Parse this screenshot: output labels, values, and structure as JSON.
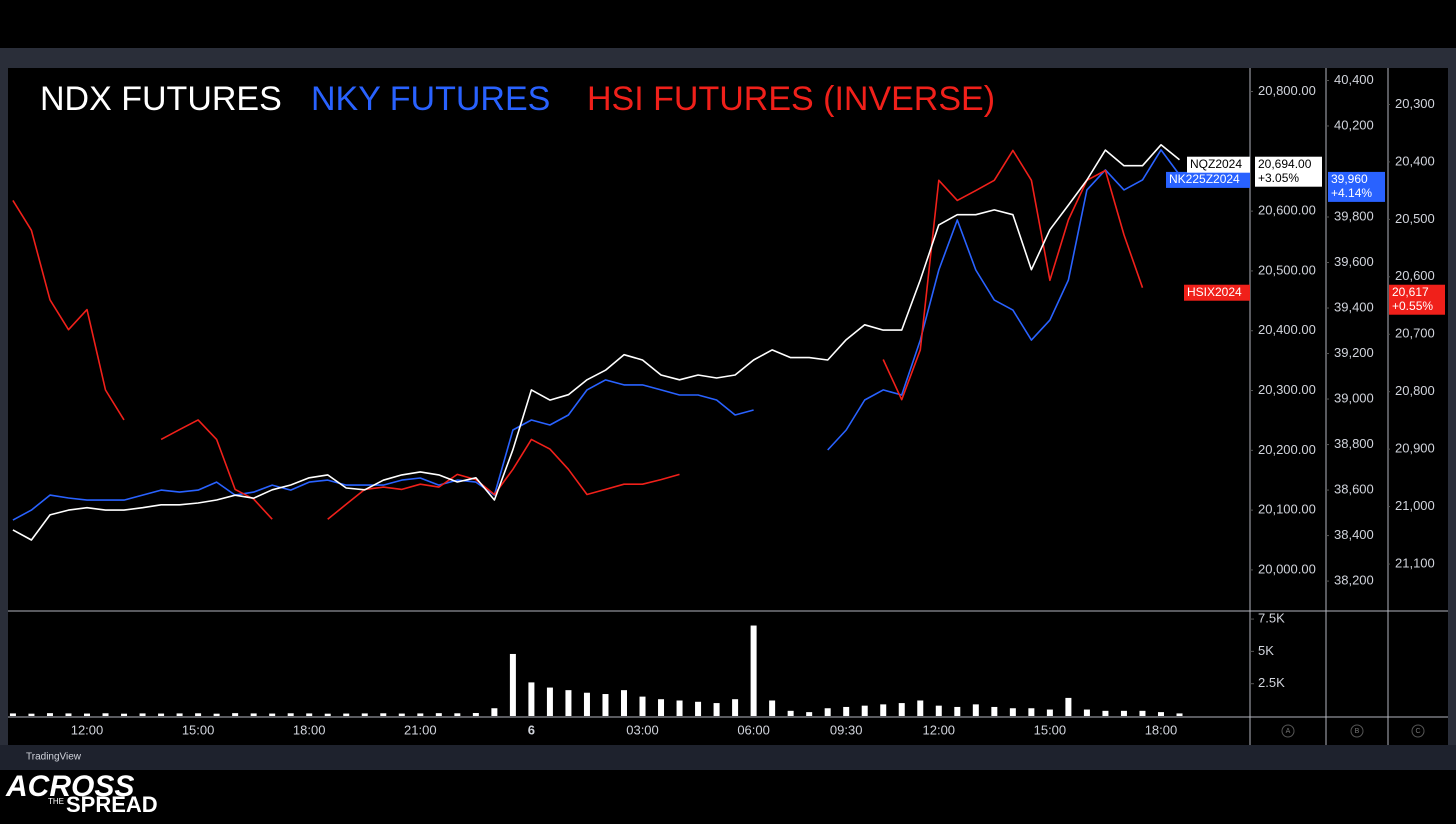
{
  "chart_data": {
    "type": "line",
    "categories": [
      null,
      null,
      null,
      null,
      "12:00",
      null,
      null,
      null,
      null,
      null,
      "15:00",
      null,
      null,
      null,
      null,
      null,
      "18:00",
      null,
      null,
      null,
      null,
      null,
      "21:00",
      null,
      null,
      null,
      null,
      null,
      "6",
      null,
      null,
      null,
      null,
      null,
      "03:00",
      null,
      null,
      null,
      null,
      null,
      "06:00",
      null,
      null,
      null,
      null,
      "09:30",
      null,
      null,
      null,
      null,
      "12:00",
      null,
      null,
      null,
      null,
      null,
      "15:00",
      null,
      null,
      null,
      null,
      null,
      "18:00",
      null
    ],
    "series": [
      {
        "name": "NKY FUTURES",
        "color": "#2962ff",
        "axis": "y2",
        "price_label": "NK225Z2024",
        "last_label": "39,960",
        "change_label": "+4.14%",
        "values": [
          38468,
          38512,
          38578,
          38565,
          38556,
          38556,
          38556,
          38578,
          38600,
          38591,
          38600,
          38635,
          38578,
          38591,
          38622,
          38600,
          38635,
          38644,
          38622,
          38622,
          38622,
          38644,
          38653,
          38622,
          38644,
          38635,
          38578,
          38864,
          38908,
          38886,
          38930,
          39040,
          39084,
          39062,
          39062,
          39040,
          39018,
          39018,
          38996,
          38930,
          38952,
          null,
          null,
          null,
          38776,
          38864,
          38996,
          39040,
          39018,
          39259,
          39567,
          39787,
          39567,
          39435,
          39391,
          39259,
          39347,
          39523,
          39919,
          40007,
          39919,
          39963,
          40095,
          39985
        ]
      },
      {
        "name": "HSI FUTURES (INVERSE)",
        "color": "#f0201a",
        "axis": "y3",
        "price_label": "HSIX2024",
        "last_label": "20,617",
        "change_label": "+0.55%",
        "values": [
          20467,
          20519,
          20640,
          20692,
          20657,
          20797,
          20849,
          null,
          20883,
          20866,
          20849,
          20883,
          20970,
          20987,
          21022,
          null,
          null,
          21022,
          20996,
          20970,
          20966,
          20970,
          20961,
          20966,
          20944,
          20953,
          20979,
          20935,
          20883,
          20900,
          20935,
          20979,
          20970,
          20961,
          20961,
          20953,
          20944,
          null,
          null,
          null,
          null,
          null,
          null,
          null,
          null,
          null,
          null,
          20744,
          20814,
          20727,
          20432,
          20467,
          20450,
          20432,
          20380,
          20432,
          20606,
          20501,
          20432,
          20415,
          20527,
          20619,
          null,
          null
        ]
      },
      {
        "name": "NDX FUTURES",
        "color": "#ffffff",
        "axis": "y",
        "price_label": "NQZ2024",
        "last_label": "20,694.00",
        "change_label": "+3.05%",
        "values": [
          20067,
          20050,
          20092,
          20100,
          20104,
          20100,
          20100,
          20104,
          20109,
          20109,
          20112,
          20117,
          20125,
          20120,
          20134,
          20142,
          20154,
          20159,
          20137,
          20134,
          20150,
          20159,
          20164,
          20159,
          20147,
          20154,
          20117,
          20201,
          20301,
          20284,
          20293,
          20318,
          20334,
          20360,
          20351,
          20326,
          20318,
          20326,
          20321,
          20326,
          20351,
          20368,
          20355,
          20355,
          20351,
          20385,
          20410,
          20401,
          20401,
          20485,
          20577,
          20594,
          20594,
          20602,
          20594,
          20502,
          20569,
          20610,
          20652,
          20702,
          20676,
          20676,
          20711,
          20686
        ]
      }
    ],
    "ylim": [
      19933,
      20836
    ],
    "yticks": [
      {
        "value": 20000,
        "label": "20,000.00"
      },
      {
        "value": 20100,
        "label": "20,100.00"
      },
      {
        "value": 20200,
        "label": "20,200.00"
      },
      {
        "value": 20300,
        "label": "20,300.00"
      },
      {
        "value": 20400,
        "label": "20,400.00"
      },
      {
        "value": 20500,
        "label": "20,500.00"
      },
      {
        "value": 20600,
        "label": "20,600.00"
      },
      {
        "value": 20800,
        "label": "20,800.00"
      }
    ],
    "y2lim": [
      38073,
      40446
    ],
    "y2ticks": [
      {
        "value": 38200,
        "label": "38,200"
      },
      {
        "value": 38400,
        "label": "38,400"
      },
      {
        "value": 38600,
        "label": "38,600"
      },
      {
        "value": 38800,
        "label": "38,800"
      },
      {
        "value": 39000,
        "label": "39,000"
      },
      {
        "value": 39200,
        "label": "39,200"
      },
      {
        "value": 39400,
        "label": "39,400"
      },
      {
        "value": 39600,
        "label": "39,600"
      },
      {
        "value": 39800,
        "label": "39,800"
      },
      {
        "value": 40200,
        "label": "40,200"
      },
      {
        "value": 40400,
        "label": "40,400"
      }
    ],
    "y3lim": [
      21180,
      20240
    ],
    "y3ticks": [
      {
        "value": 20300,
        "label": "20,300"
      },
      {
        "value": 20400,
        "label": "20,400"
      },
      {
        "value": 20500,
        "label": "20,500"
      },
      {
        "value": 20600,
        "label": "20,600"
      },
      {
        "value": 20700,
        "label": "20,700"
      },
      {
        "value": 20800,
        "label": "20,800"
      },
      {
        "value": 20900,
        "label": "20,900"
      },
      {
        "value": 21000,
        "label": "21,000"
      },
      {
        "value": 21100,
        "label": "21,100"
      }
    ],
    "volume": {
      "color": "#ffffff",
      "ylim": [
        0,
        8047
      ],
      "yticks": [
        {
          "value": 2500,
          "label": "2.5K"
        },
        {
          "value": 5000,
          "label": "5K"
        },
        {
          "value": 7500,
          "label": "7.5K"
        }
      ],
      "values": [
        200,
        180,
        220,
        200,
        190,
        210,
        180,
        200,
        190,
        200,
        210,
        180,
        220,
        200,
        190,
        210,
        200,
        180,
        190,
        200,
        210,
        190,
        200,
        220,
        210,
        230,
        600,
        4800,
        2600,
        2200,
        2000,
        1800,
        1700,
        2000,
        1500,
        1300,
        1200,
        1100,
        1000,
        1300,
        7000,
        1200,
        400,
        300,
        600,
        700,
        800,
        900,
        1000,
        1200,
        800,
        700,
        900,
        700,
        600,
        600,
        500,
        1400,
        500,
        400,
        400,
        400,
        300,
        200
      ]
    },
    "axis_buttons": [
      "A",
      "B",
      "C"
    ]
  },
  "footer": {
    "brand": "TradingView"
  },
  "logo": {
    "lines": [
      "ACROSS",
      "THE",
      "SPREAD"
    ]
  }
}
